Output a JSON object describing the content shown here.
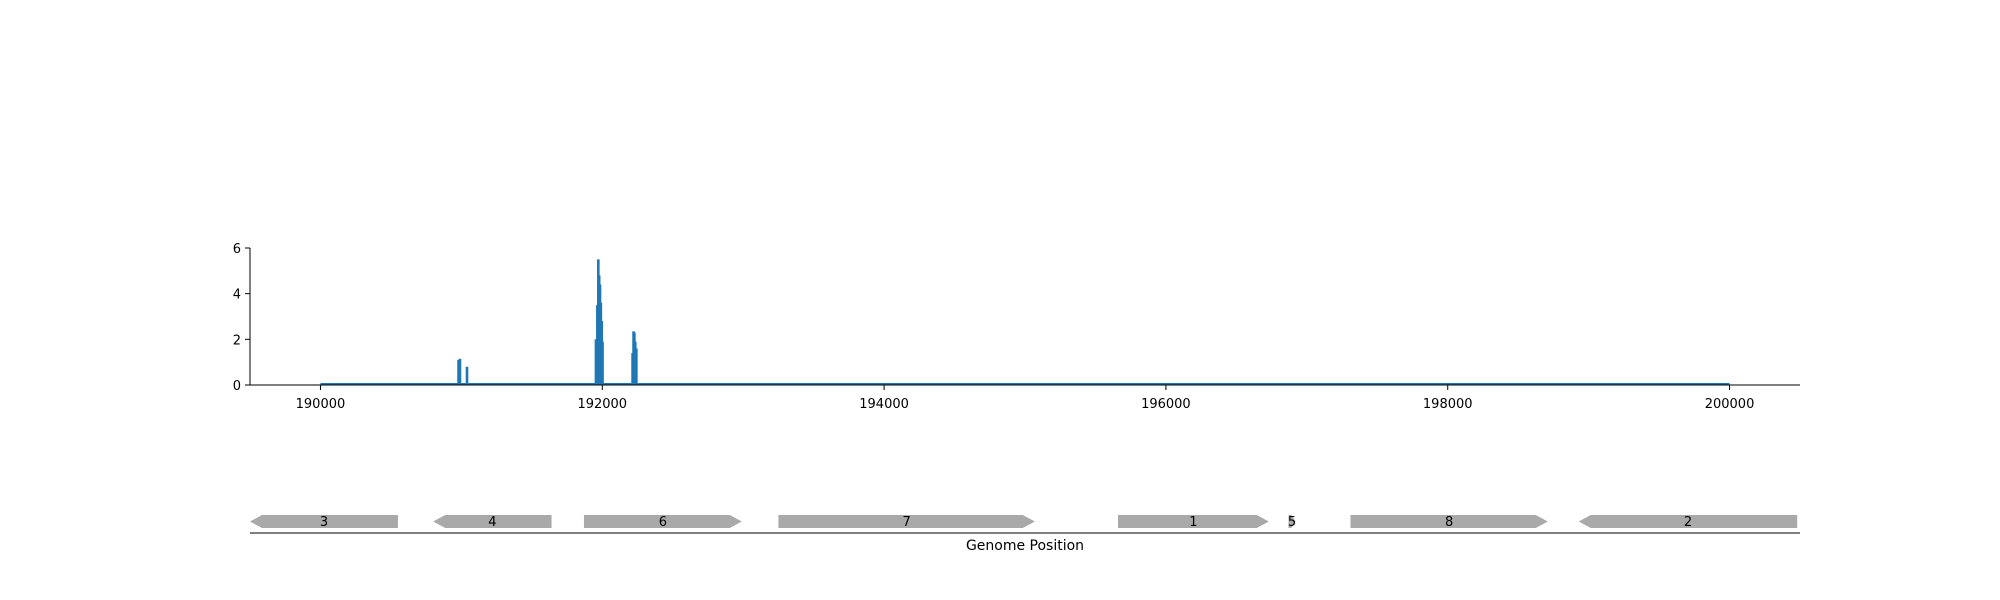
{
  "chart_data": {
    "type": "line",
    "title": "",
    "coverage": {
      "xlim": [
        189500,
        200500
      ],
      "ylim": [
        0,
        6
      ],
      "y_ticks": [
        0,
        2,
        4,
        6
      ],
      "x_ticks": [
        190000,
        192000,
        194000,
        196000,
        198000,
        200000
      ],
      "color": "#1f77b4",
      "x_range": [
        190000,
        200000
      ],
      "peaks": [
        {
          "x": 190980,
          "y": 1.1
        },
        {
          "x": 190990,
          "y": 1.15
        },
        {
          "x": 191040,
          "y": 0.8
        },
        {
          "x": 191955,
          "y": 2.0
        },
        {
          "x": 191965,
          "y": 3.5
        },
        {
          "x": 191972,
          "y": 5.5
        },
        {
          "x": 191978,
          "y": 4.8
        },
        {
          "x": 191984,
          "y": 4.4
        },
        {
          "x": 191990,
          "y": 3.6
        },
        {
          "x": 191996,
          "y": 2.8
        },
        {
          "x": 192002,
          "y": 1.9
        },
        {
          "x": 192215,
          "y": 1.4
        },
        {
          "x": 192222,
          "y": 2.35
        },
        {
          "x": 192228,
          "y": 2.3
        },
        {
          "x": 192234,
          "y": 1.9
        },
        {
          "x": 192242,
          "y": 1.6
        }
      ]
    },
    "genes": {
      "color": "#a9a9a9",
      "xlabel": "Genome Position",
      "items": [
        {
          "label": "3",
          "start": 189500,
          "end": 190550,
          "strand": "-"
        },
        {
          "label": "4",
          "start": 190800,
          "end": 191640,
          "strand": "-"
        },
        {
          "label": "6",
          "start": 191870,
          "end": 192990,
          "strand": "+"
        },
        {
          "label": "7",
          "start": 193250,
          "end": 195070,
          "strand": "+"
        },
        {
          "label": "1",
          "start": 195660,
          "end": 196730,
          "strand": "+"
        },
        {
          "label": "5",
          "start": 196870,
          "end": 196920,
          "strand": "+"
        },
        {
          "label": "8",
          "start": 197310,
          "end": 198710,
          "strand": "+"
        },
        {
          "label": "2",
          "start": 198930,
          "end": 200480,
          "strand": "-"
        }
      ]
    }
  }
}
